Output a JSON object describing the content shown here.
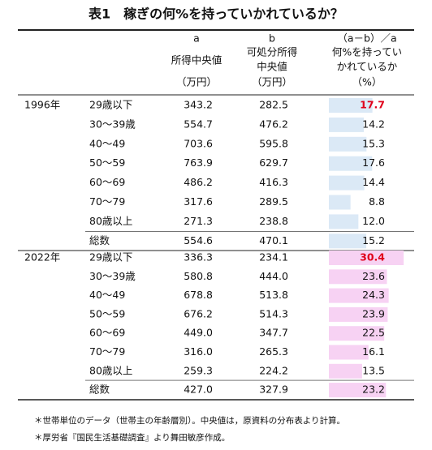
{
  "header": {
    "title": "表1　稼ぎの何%を持っていかれているか？",
    "columns": [
      [
        "a",
        "所得中央値",
        "（万円）"
      ],
      [
        "b",
        "可処分所得",
        "中央値",
        "（万円）"
      ],
      [
        "（a－b）／a",
        "何%を持ってい",
        "かれているか",
        "（%）"
      ]
    ]
  },
  "groups": [
    {
      "year": "1996年",
      "rows": [
        [
          "29歳以下",
          "343.2",
          "282.5",
          "17.7"
        ],
        [
          "30～39歳",
          "554.7",
          "476.2",
          "14.2"
        ],
        [
          "40～49",
          "703.6",
          "595.8",
          "15.3"
        ],
        [
          "50～59",
          "763.9",
          "629.7",
          "17.6"
        ],
        [
          "60～69",
          "486.2",
          "416.3",
          "14.4"
        ],
        [
          "70～79",
          "317.6",
          "289.5",
          "8.8"
        ],
        [
          "80歳以上",
          "271.3",
          "238.8",
          "12.0"
        ],
        [
          "総数",
          "554.6",
          "470.1",
          "15.2"
        ]
      ]
    },
    {
      "year": "2022年",
      "rows": [
        [
          "29歳以下",
          "336.3",
          "234.1",
          "30.4"
        ],
        [
          "30～39歳",
          "580.8",
          "444.0",
          "23.6"
        ],
        [
          "40～49",
          "678.8",
          "513.8",
          "24.3"
        ],
        [
          "50～59",
          "676.2",
          "514.3",
          "23.9"
        ],
        [
          "60～69",
          "449.0",
          "347.7",
          "22.5"
        ],
        [
          "70～79",
          "316.0",
          "265.3",
          "16.1"
        ],
        [
          "80歳以上",
          "259.3",
          "224.2",
          "13.5"
        ],
        [
          "総数",
          "427.0",
          "327.9",
          "23.2"
        ]
      ]
    }
  ],
  "notes": [
    "＊世帯単位のデータ（世帯主の年齢層別）。中央値は，原資料の分布表より計算。",
    "＊厚労省『国民生活基礎調査』より舞田敏彦作成。"
  ]
}
